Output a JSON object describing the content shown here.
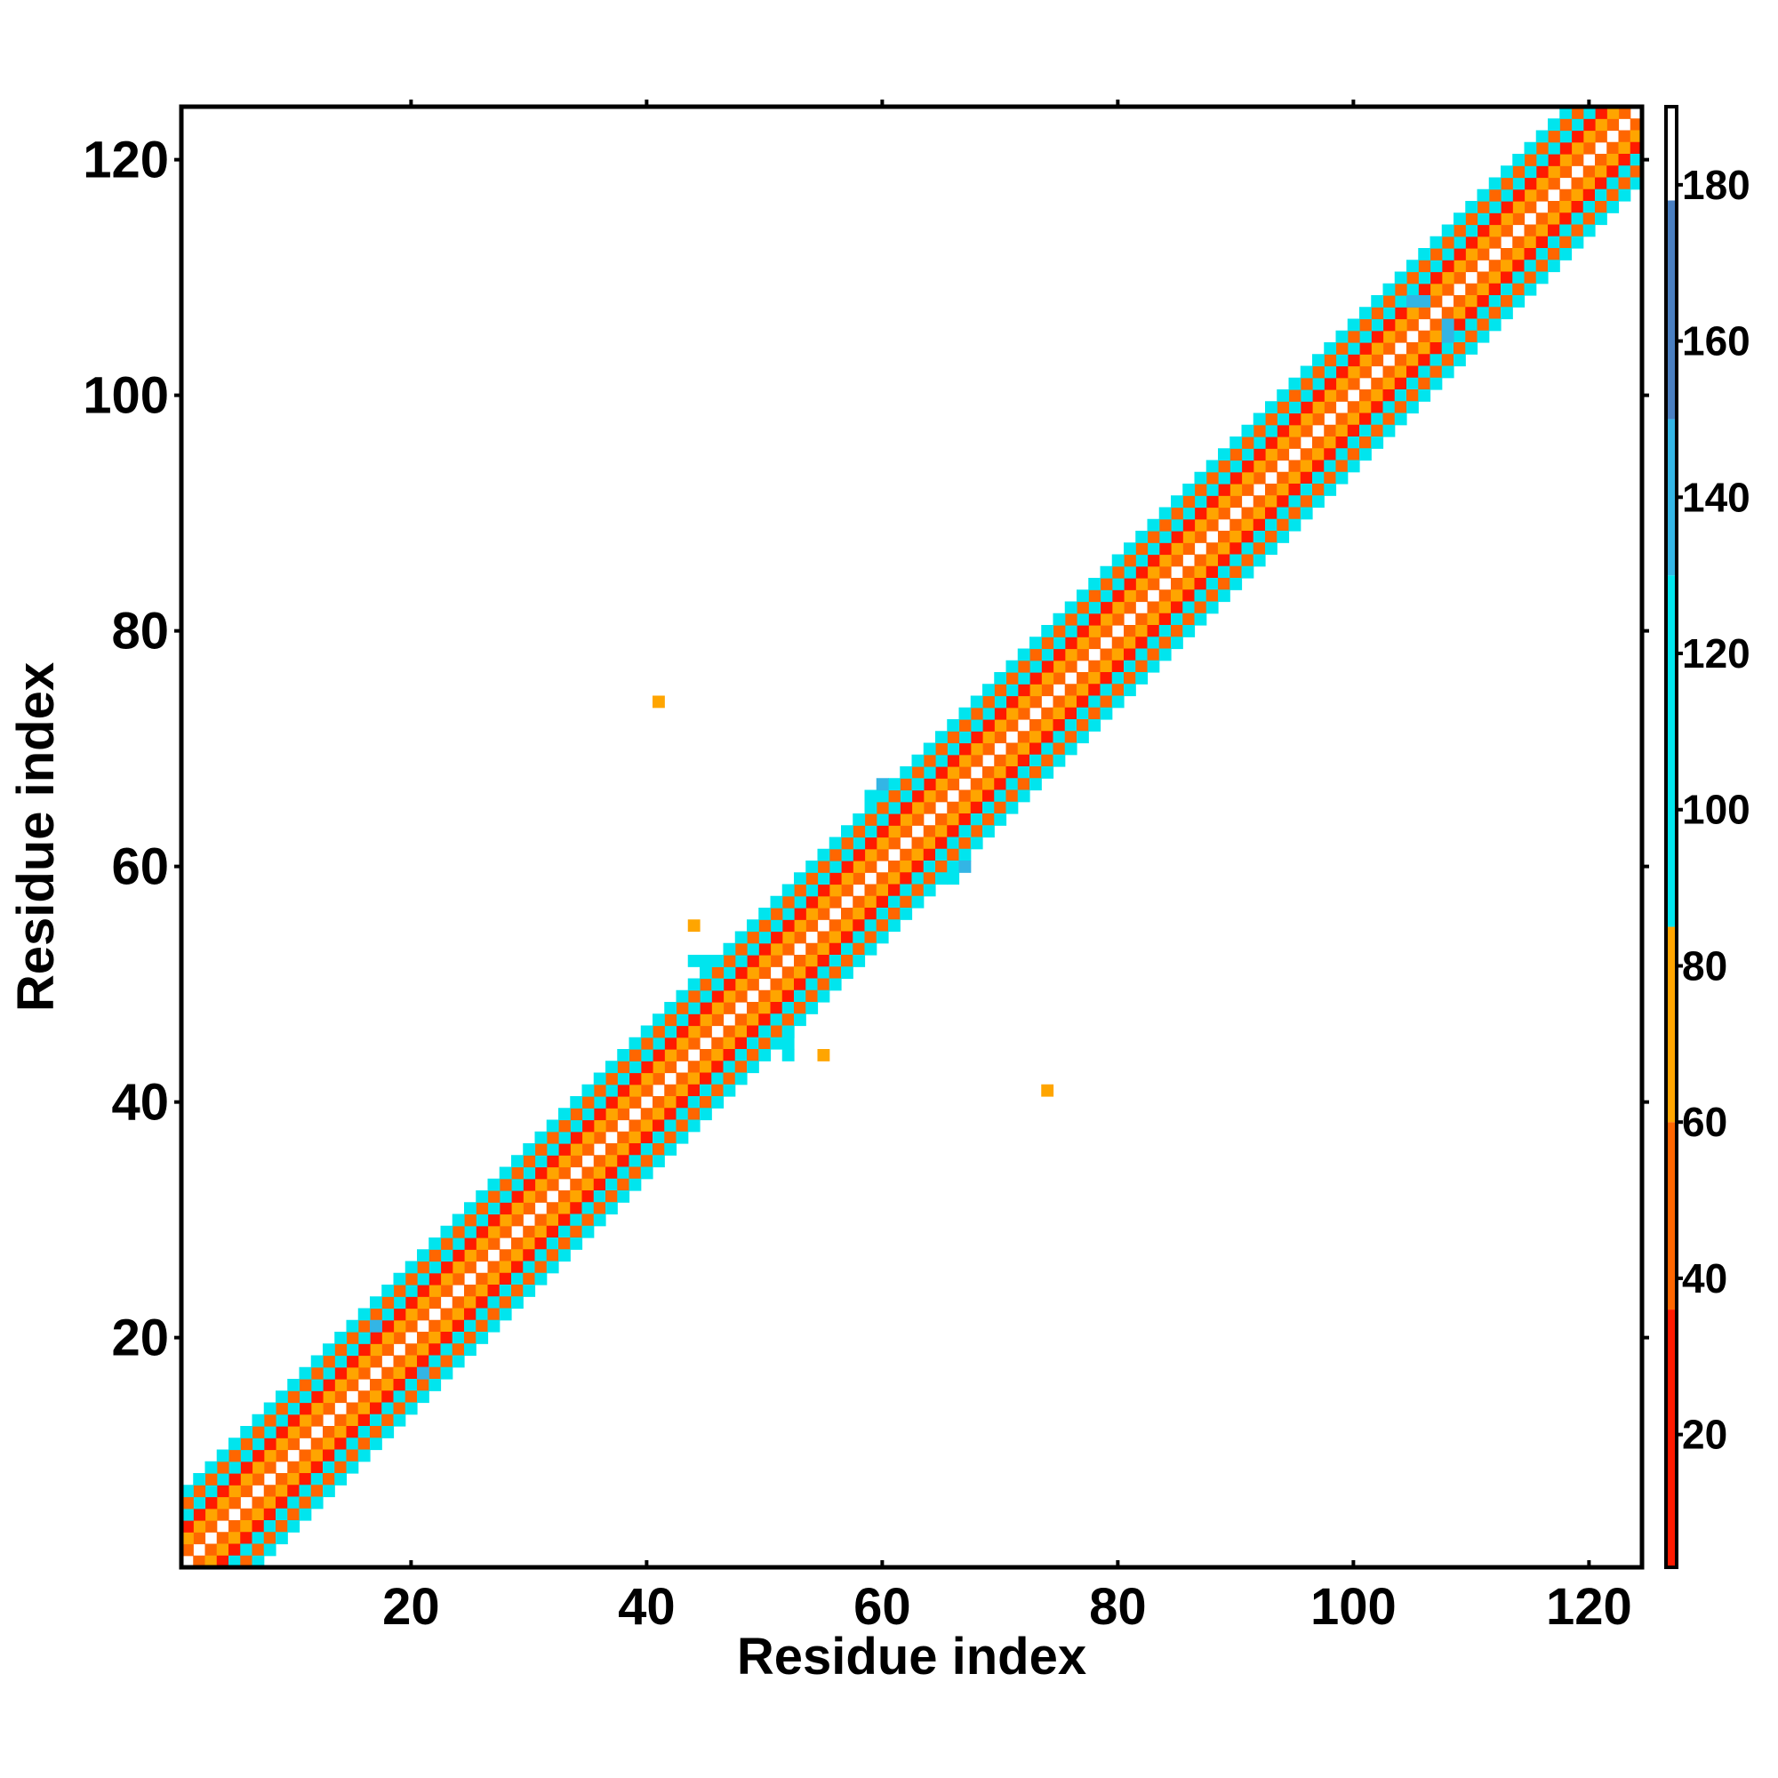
{
  "chart_data": {
    "type": "heatmap",
    "title": "",
    "xlabel": "Residue index",
    "ylabel": "Residue index",
    "xlim": [
      1,
      124
    ],
    "ylim": [
      1,
      124
    ],
    "x_ticks": [
      20,
      40,
      60,
      80,
      100,
      120
    ],
    "y_ticks": [
      20,
      40,
      60,
      80,
      100,
      120
    ],
    "grid": false,
    "matrix_size": 124,
    "colorbar": {
      "range": [
        3,
        190
      ],
      "ticks": [
        20,
        40,
        60,
        80,
        100,
        120,
        140,
        160,
        180
      ],
      "bands": [
        {
          "from": 3,
          "to": 36,
          "color": "#ff1a00"
        },
        {
          "from": 36,
          "to": 60,
          "color": "#ff6600"
        },
        {
          "from": 60,
          "to": 85,
          "color": "#ffa500"
        },
        {
          "from": 85,
          "to": 130,
          "color": "#00e5ee"
        },
        {
          "from": 130,
          "to": 150,
          "color": "#33b5e5"
        },
        {
          "from": 150,
          "to": 178,
          "color": "#4a7fc1"
        },
        {
          "from": 178,
          "to": 190,
          "color": "#ffffff"
        }
      ]
    },
    "diagonal_band": [
      {
        "offset": 1,
        "value": 58
      },
      {
        "offset": 2,
        "value": 80
      },
      {
        "offset": 3,
        "value": 25
      },
      {
        "offset": 4,
        "value": 95
      },
      {
        "offset": 5,
        "value": 50
      },
      {
        "offset": 6,
        "value": 100
      }
    ],
    "points": [
      {
        "x": 41,
        "y": 74,
        "value": 75
      },
      {
        "x": 74,
        "y": 41,
        "value": 75
      },
      {
        "x": 44,
        "y": 55,
        "value": 75
      },
      {
        "x": 55,
        "y": 44,
        "value": 75
      },
      {
        "x": 44,
        "y": 52,
        "value": 105
      },
      {
        "x": 45,
        "y": 52,
        "value": 105
      },
      {
        "x": 46,
        "y": 52,
        "value": 105
      },
      {
        "x": 52,
        "y": 44,
        "value": 105
      },
      {
        "x": 52,
        "y": 45,
        "value": 105
      },
      {
        "x": 52,
        "y": 46,
        "value": 105
      },
      {
        "x": 60,
        "y": 67,
        "value": 135
      },
      {
        "x": 67,
        "y": 60,
        "value": 135
      },
      {
        "x": 66,
        "y": 59,
        "value": 105
      },
      {
        "x": 59,
        "y": 66,
        "value": 105
      },
      {
        "x": 105,
        "y": 108,
        "value": 135
      },
      {
        "x": 106,
        "y": 108,
        "value": 135
      },
      {
        "x": 108,
        "y": 105,
        "value": 135
      },
      {
        "x": 108,
        "y": 106,
        "value": 135
      },
      {
        "x": 17,
        "y": 21,
        "value": 135
      },
      {
        "x": 21,
        "y": 17,
        "value": 135
      },
      {
        "x": 50,
        "y": 46,
        "value": 105
      },
      {
        "x": 46,
        "y": 50,
        "value": 105
      },
      {
        "x": 63,
        "y": 67,
        "value": 105
      },
      {
        "x": 67,
        "y": 63,
        "value": 105
      }
    ]
  }
}
